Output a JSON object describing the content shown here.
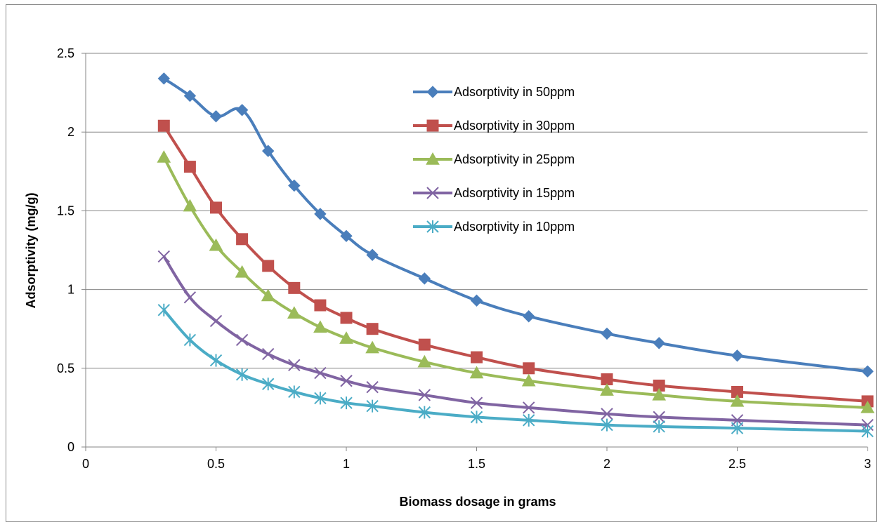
{
  "chart_data": {
    "type": "line",
    "title": "",
    "xlabel": "Biomass dosage in grams",
    "ylabel": "Adsorptivity (mg/g)",
    "xlim": [
      0,
      3
    ],
    "ylim": [
      0,
      2.5
    ],
    "x_ticks": [
      "0",
      "0.5",
      "1",
      "1.5",
      "2",
      "2.5",
      "3"
    ],
    "y_ticks": [
      "0",
      "0.5",
      "1",
      "1.5",
      "2",
      "2.5"
    ],
    "grid": "horizontal major gridlines",
    "legend_position": "top-right inside plot",
    "x": [
      0.3,
      0.4,
      0.5,
      0.6,
      0.7,
      0.8,
      0.9,
      1.0,
      1.1,
      1.3,
      1.5,
      1.7,
      2.0,
      2.2,
      2.5,
      3.0
    ],
    "series": [
      {
        "name": "Adsorptivity in 50ppm",
        "color": "#4a7ebb",
        "marker": "diamond",
        "values": [
          2.34,
          2.23,
          2.1,
          2.14,
          1.88,
          1.66,
          1.48,
          1.34,
          1.22,
          1.07,
          0.93,
          0.83,
          0.72,
          0.66,
          0.58,
          0.48
        ]
      },
      {
        "name": "Adsorptivity in 30ppm",
        "color": "#c0504d",
        "marker": "square",
        "values": [
          2.04,
          1.78,
          1.52,
          1.32,
          1.15,
          1.01,
          0.9,
          0.82,
          0.75,
          0.65,
          0.57,
          0.5,
          0.43,
          0.39,
          0.35,
          0.29
        ]
      },
      {
        "name": "Adsorptivity in 25ppm",
        "color": "#9bbb59",
        "marker": "triangle",
        "values": [
          1.84,
          1.53,
          1.28,
          1.11,
          0.96,
          0.85,
          0.76,
          0.69,
          0.63,
          0.54,
          0.47,
          0.42,
          0.36,
          0.33,
          0.29,
          0.25
        ]
      },
      {
        "name": "Adsorptivity in 15ppm",
        "color": "#8064a2",
        "marker": "x",
        "values": [
          1.21,
          0.95,
          0.8,
          0.68,
          0.59,
          0.52,
          0.47,
          0.42,
          0.38,
          0.33,
          0.28,
          0.25,
          0.21,
          0.19,
          0.17,
          0.14
        ]
      },
      {
        "name": "Adsorptivity in 10ppm",
        "color": "#4bacc6",
        "marker": "star",
        "values": [
          0.87,
          0.68,
          0.55,
          0.46,
          0.4,
          0.35,
          0.31,
          0.28,
          0.26,
          0.22,
          0.19,
          0.17,
          0.14,
          0.13,
          0.12,
          0.1
        ]
      }
    ]
  }
}
